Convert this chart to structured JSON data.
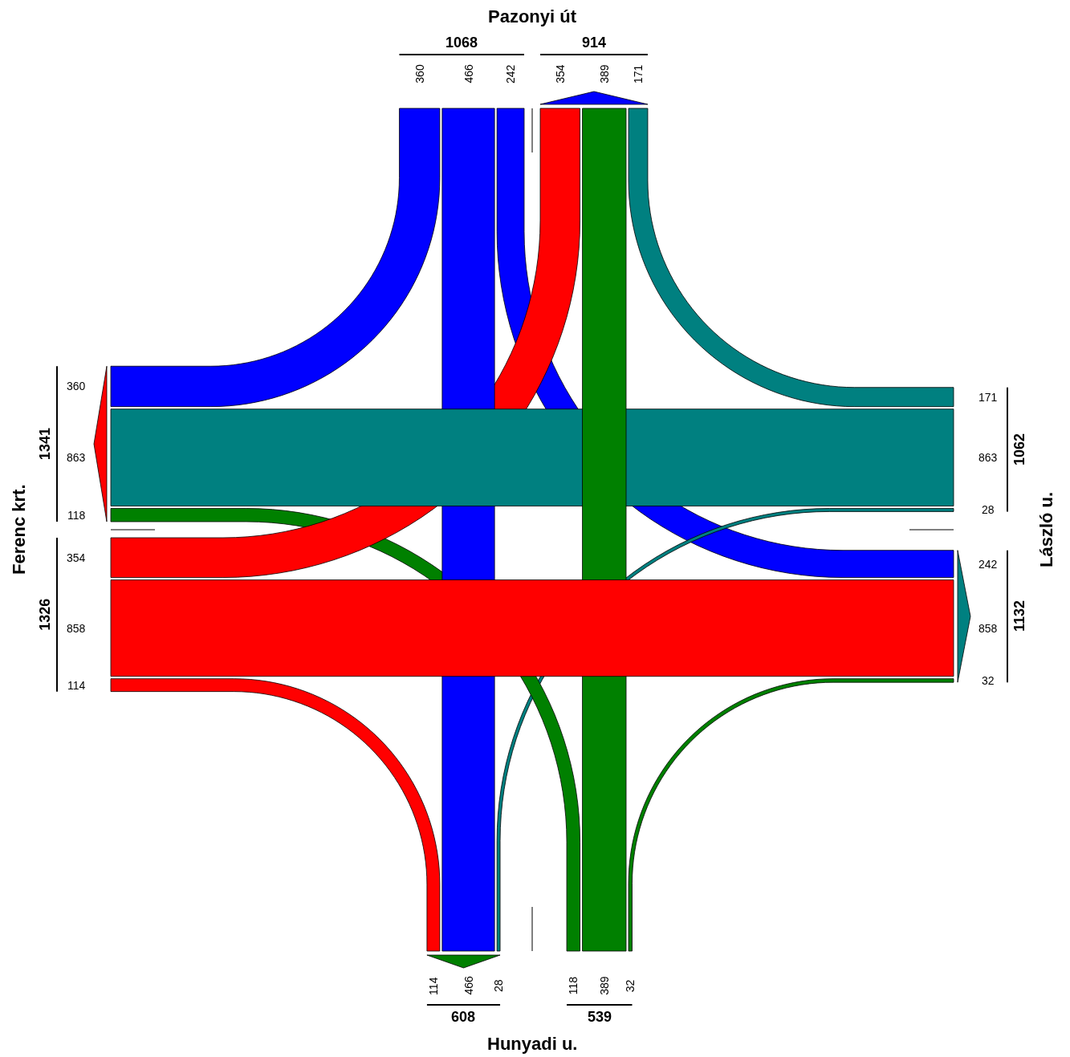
{
  "chart_data": {
    "type": "other",
    "categories": [
      "Pazonyi út",
      "László u.",
      "Hunyadi u.",
      "Ferenc krt."
    ],
    "series": [
      {
        "color": "#0000ff",
        "values": [
          null,
          242,
          466,
          360
        ]
      },
      {
        "color": "#008080",
        "values": [
          171,
          null,
          28,
          863
        ]
      },
      {
        "color": "#008000",
        "values": [
          389,
          32,
          null,
          118
        ]
      },
      {
        "color": "#ff0000",
        "values": [
          354,
          858,
          114,
          null
        ]
      }
    ],
    "annotations": [
      "242",
      "466",
      "360",
      "171",
      "28",
      "863",
      "389",
      "32",
      "118",
      "354",
      "858",
      "114"
    ],
    "totals": [
      [
        "1068",
        "914"
      ],
      [
        "1062",
        "1132"
      ],
      [
        "539",
        "608"
      ],
      [
        "1326",
        "1341"
      ]
    ],
    "data_labels": true
  }
}
